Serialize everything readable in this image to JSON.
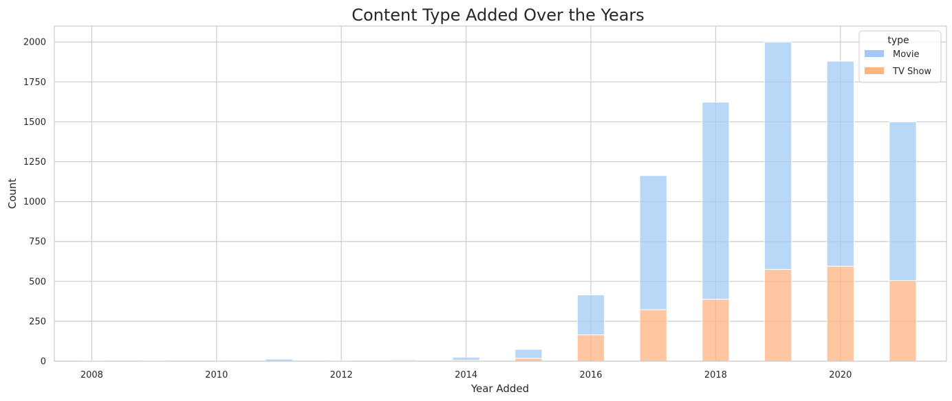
{
  "chart_data": {
    "type": "bar",
    "stacked": true,
    "title": "Content Type Added Over the Years",
    "xlabel": "Year Added",
    "ylabel": "Count",
    "xlim": [
      2007.4,
      2021.7
    ],
    "ylim": [
      0,
      2100
    ],
    "x_ticks": [
      2008,
      2010,
      2012,
      2014,
      2016,
      2018,
      2020
    ],
    "y_ticks": [
      0,
      250,
      500,
      750,
      1000,
      1250,
      1500,
      1750,
      2000
    ],
    "grid": true,
    "legend": {
      "title": "type",
      "position": "top-right"
    },
    "bin_width": 0.4333,
    "x": [
      2008.0,
      2009.0,
      2010.0,
      2011.0,
      2012.0,
      2013.0,
      2014.0,
      2015.0,
      2016.0,
      2017.0,
      2018.0,
      2019.0,
      2020.0,
      2021.0
    ],
    "series": [
      {
        "name": "Movie",
        "color": "#a1c9f4",
        "values": [
          1,
          2,
          1,
          13,
          3,
          6,
          19,
          56,
          250,
          840,
          1235,
          1425,
          1285,
          995
        ]
      },
      {
        "name": "TV Show",
        "color": "#ffb482",
        "values": [
          1,
          0,
          0,
          0,
          0,
          4,
          6,
          18,
          165,
          323,
          388,
          575,
          595,
          505
        ]
      }
    ]
  }
}
